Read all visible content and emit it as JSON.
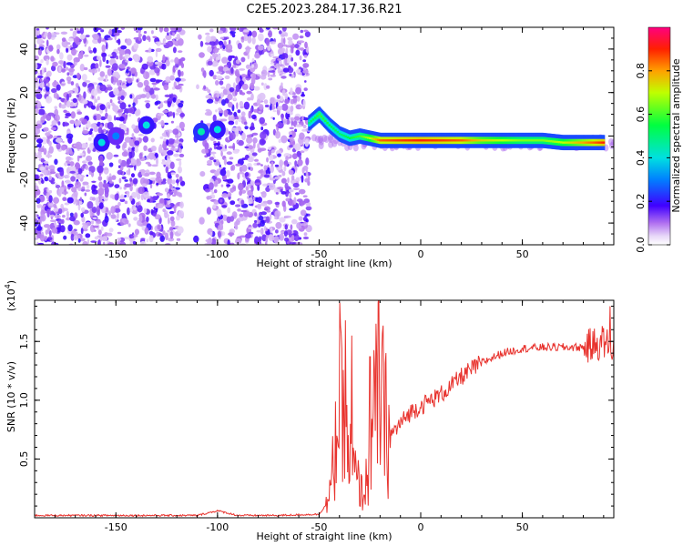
{
  "title": "C2E5.2023.284.17.36.R21",
  "chart_data": [
    {
      "type": "heatmap",
      "xlabel": "Height of straight line (km)",
      "ylabel": "Frequency (Hz)",
      "xlim": [
        -190,
        95
      ],
      "ylim": [
        -50,
        50
      ],
      "x_ticks": [
        -150,
        -100,
        -50,
        0,
        50
      ],
      "y_ticks": [
        -40,
        -20,
        0,
        20,
        40
      ],
      "colorbar": {
        "label": "Normalized spectral amplitude",
        "range": [
          0.0,
          1.0
        ],
        "ticks": [
          "0.0",
          "0.2",
          "0.4",
          "0.6",
          "0.8"
        ],
        "tick_values": [
          0.0,
          0.2,
          0.4,
          0.6,
          0.8
        ]
      },
      "ridge": {
        "x": [
          -55,
          -50,
          -45,
          -40,
          -35,
          -30,
          -25,
          -20,
          -10,
          0,
          10,
          20,
          30,
          40,
          50,
          60,
          70,
          80,
          90
        ],
        "y": [
          6,
          10,
          5,
          1,
          -1,
          0,
          -1,
          -2,
          -2,
          -2,
          -2,
          -2,
          -2,
          -2,
          -2,
          -2,
          -3,
          -3,
          -3
        ],
        "amplitude": [
          0.5,
          0.6,
          0.55,
          0.5,
          0.55,
          0.6,
          0.7,
          0.85,
          0.88,
          0.9,
          0.88,
          0.85,
          0.75,
          0.7,
          0.65,
          0.65,
          0.7,
          0.8,
          0.9
        ]
      },
      "blobs": [
        {
          "x": -157,
          "y": -3,
          "amplitude": 0.4
        },
        {
          "x": -150,
          "y": 0,
          "amplitude": 0.3
        },
        {
          "x": -135,
          "y": 5,
          "amplitude": 0.4
        },
        {
          "x": -108,
          "y": 2,
          "amplitude": 0.45
        },
        {
          "x": -100,
          "y": 3,
          "amplitude": 0.4
        }
      ]
    },
    {
      "type": "line",
      "xlabel": "Height of straight line (km)",
      "ylabel": "SNR (10 * v/v)",
      "scale_label": "(x10",
      "scale_exponent": "4",
      "scale_suffix": ")",
      "xlim": [
        -190,
        95
      ],
      "ylim": [
        0,
        1.85
      ],
      "x_ticks": [
        -150,
        -100,
        -50,
        0,
        50
      ],
      "y_ticks": [
        0.5,
        1.0,
        1.5
      ],
      "y_tick_labels": [
        "0.5",
        "1.0",
        "1.5"
      ],
      "series": [
        {
          "color": "#e8332e",
          "x": [
            -190,
            -160,
            -130,
            -110,
            -100,
            -90,
            -70,
            -50,
            -45,
            -42,
            -40,
            -38,
            -35,
            -32,
            -30,
            -28,
            -25,
            -22,
            -20,
            -18,
            -15,
            -10,
            -5,
            0,
            5,
            10,
            15,
            20,
            30,
            40,
            50,
            60,
            70,
            80,
            85,
            90,
            95
          ],
          "y": [
            0.02,
            0.02,
            0.02,
            0.02,
            0.06,
            0.02,
            0.02,
            0.03,
            0.15,
            0.6,
            1.0,
            0.7,
            0.5,
            0.35,
            0.25,
            0.2,
            0.45,
            1.0,
            1.15,
            0.85,
            0.7,
            0.8,
            0.9,
            0.95,
            1.0,
            1.05,
            1.12,
            1.2,
            1.32,
            1.4,
            1.44,
            1.45,
            1.45,
            1.45,
            1.47,
            1.5,
            1.45
          ],
          "spikes": [
            {
              "x": -40,
              "y": 1.83
            },
            {
              "x": -37,
              "y": 1.68
            },
            {
              "x": -34,
              "y": 1.55
            },
            {
              "x": -25,
              "y": 1.37
            },
            {
              "x": -22,
              "y": 1.65
            },
            {
              "x": 93,
              "y": 1.8
            }
          ]
        }
      ]
    }
  ]
}
